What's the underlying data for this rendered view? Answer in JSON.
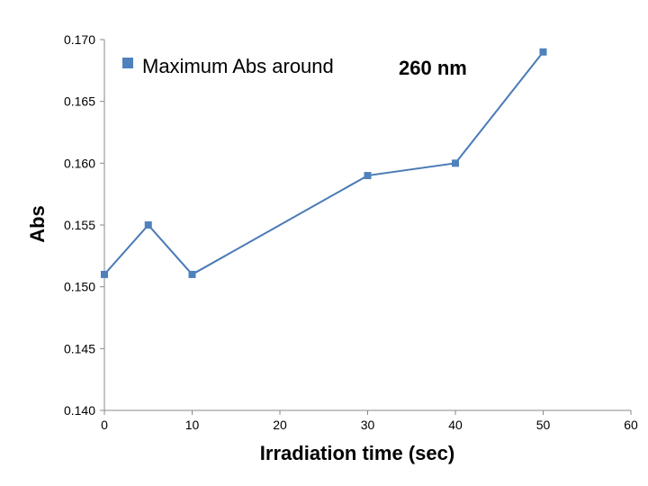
{
  "chart_data": {
    "type": "line",
    "x": [
      0,
      5,
      10,
      30,
      40,
      50
    ],
    "series": [
      {
        "name": "Maximum Abs around",
        "values": [
          0.151,
          0.155,
          0.151,
          0.159,
          0.16,
          0.169
        ]
      }
    ],
    "xlabel": "Irradiation time (sec)",
    "ylabel": "Abs",
    "xlim": [
      0,
      60
    ],
    "ylim": [
      0.14,
      0.17
    ],
    "xticks": [
      "0",
      "10",
      "20",
      "30",
      "40",
      "50",
      "60"
    ],
    "yticks": [
      "0.140",
      "0.145",
      "0.150",
      "0.155",
      "0.160",
      "0.165",
      "0.170"
    ],
    "annotation": "260 nm",
    "legend": "top-left",
    "grid": false,
    "colors": {
      "series": "#4a7ab5",
      "marker": "#4f81bd",
      "axis": "#888888"
    }
  }
}
